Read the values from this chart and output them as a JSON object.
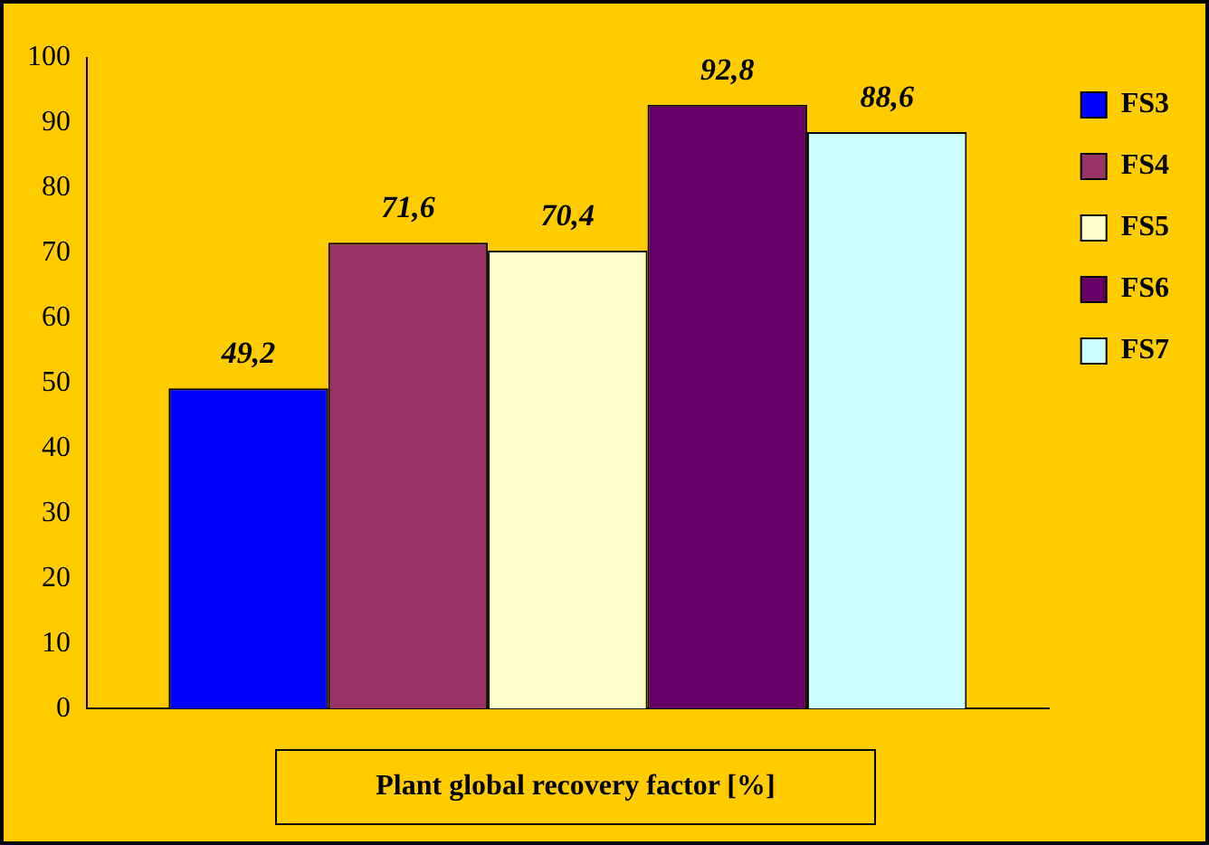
{
  "chart_data": {
    "type": "bar",
    "xlabel": "Plant global recovery factor [%]",
    "categories": [
      null
    ],
    "series": [
      {
        "name": "FS3",
        "color": "#0000ff",
        "values": [
          49.2
        ],
        "value_labels": [
          "49,2"
        ]
      },
      {
        "name": "FS4",
        "color": "#993366",
        "values": [
          71.6
        ],
        "value_labels": [
          "71,6"
        ]
      },
      {
        "name": "FS5",
        "color": "#ffffcc",
        "values": [
          70.4
        ],
        "value_labels": [
          "70,4"
        ]
      },
      {
        "name": "FS6",
        "color": "#660066",
        "values": [
          92.8
        ],
        "value_labels": [
          "92,8"
        ]
      },
      {
        "name": "FS7",
        "color": "#ccffff",
        "values": [
          88.6
        ],
        "value_labels": [
          "88,6"
        ]
      }
    ],
    "ylim": [
      0,
      100
    ],
    "yticks": [
      0,
      10,
      20,
      30,
      40,
      50,
      60,
      70,
      80,
      90,
      100
    ],
    "grid": false,
    "legend": "right"
  }
}
